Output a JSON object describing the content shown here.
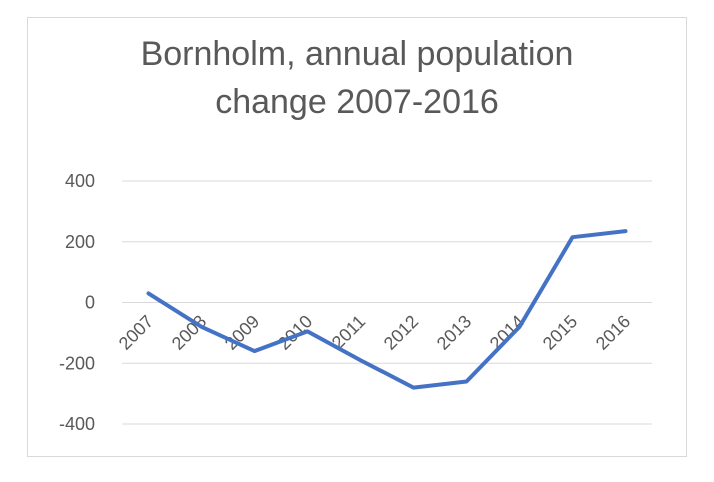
{
  "chart_data": {
    "type": "line",
    "title_lines": [
      "Bornholm, annual population",
      "change 2007-2016"
    ],
    "categories": [
      "2007",
      "2008",
      "2009",
      "2010",
      "2011",
      "2012",
      "2013",
      "2014",
      "2015",
      "2016"
    ],
    "series": [
      {
        "values": [
          30,
          -80,
          -160,
          -95,
          -190,
          -280,
          -260,
          -80,
          215,
          235
        ],
        "color": "#4472c4"
      }
    ],
    "yticks": [
      400,
      200,
      0,
      -200,
      -400
    ],
    "ylim": [
      -400,
      400
    ],
    "grid": true,
    "legend": "none",
    "gridline_color": "#d9d9d9",
    "text_color": "#595959"
  }
}
